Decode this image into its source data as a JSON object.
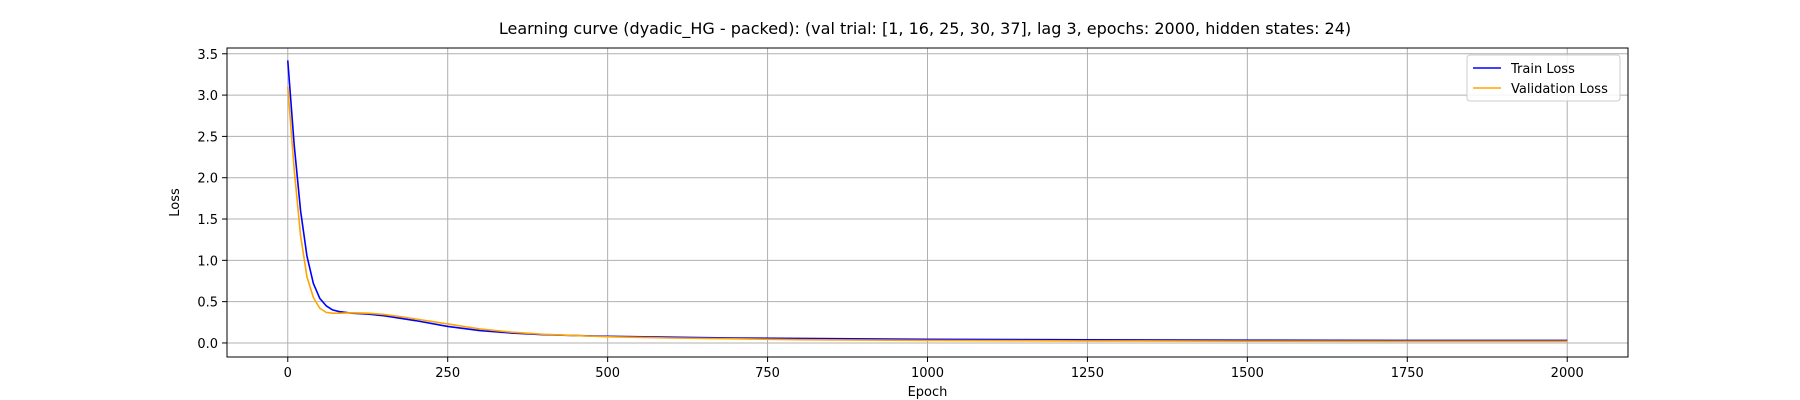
{
  "chart_data": {
    "type": "line",
    "title": "Learning curve (dyadic_HG - packed): (val trial: [1, 16, 25, 30, 37], lag 3, epochs: 2000, hidden states: 24)",
    "xlabel": "Epoch",
    "ylabel": "Loss",
    "xlim": [
      -95,
      2095
    ],
    "ylim": [
      -0.17,
      3.57
    ],
    "xticks": [
      0,
      250,
      500,
      750,
      1000,
      1250,
      1500,
      1750,
      2000
    ],
    "xtick_labels": [
      "0",
      "250",
      "500",
      "750",
      "1000",
      "1250",
      "1500",
      "1750",
      "2000"
    ],
    "yticks": [
      0.0,
      0.5,
      1.0,
      1.5,
      2.0,
      2.5,
      3.0,
      3.5
    ],
    "ytick_labels": [
      "0.0",
      "0.5",
      "1.0",
      "1.5",
      "2.0",
      "2.5",
      "3.0",
      "3.5"
    ],
    "grid": true,
    "legend_position": "top-right",
    "series": [
      {
        "name": "Train Loss",
        "color": "#0000ff",
        "x": [
          0,
          10,
          20,
          30,
          40,
          50,
          60,
          70,
          80,
          100,
          125,
          150,
          175,
          200,
          250,
          300,
          350,
          400,
          450,
          500,
          600,
          700,
          800,
          1000,
          1250,
          1500,
          1750,
          2000
        ],
        "y": [
          3.42,
          2.4,
          1.6,
          1.05,
          0.72,
          0.54,
          0.45,
          0.4,
          0.38,
          0.36,
          0.35,
          0.33,
          0.3,
          0.27,
          0.2,
          0.15,
          0.12,
          0.1,
          0.09,
          0.08,
          0.07,
          0.06,
          0.055,
          0.045,
          0.038,
          0.034,
          0.031,
          0.03
        ]
      },
      {
        "name": "Validation Loss",
        "color": "#ffa500",
        "x": [
          0,
          10,
          20,
          30,
          40,
          50,
          60,
          70,
          80,
          100,
          125,
          150,
          175,
          200,
          250,
          300,
          350,
          400,
          450,
          500,
          600,
          700,
          800,
          1000,
          1250,
          1500,
          1750,
          2000
        ],
        "y": [
          3.1,
          2.1,
          1.3,
          0.8,
          0.55,
          0.42,
          0.37,
          0.36,
          0.36,
          0.365,
          0.36,
          0.345,
          0.32,
          0.29,
          0.23,
          0.17,
          0.13,
          0.105,
          0.09,
          0.075,
          0.06,
          0.05,
          0.04,
          0.03,
          0.025,
          0.022,
          0.02,
          0.02
        ]
      }
    ]
  }
}
